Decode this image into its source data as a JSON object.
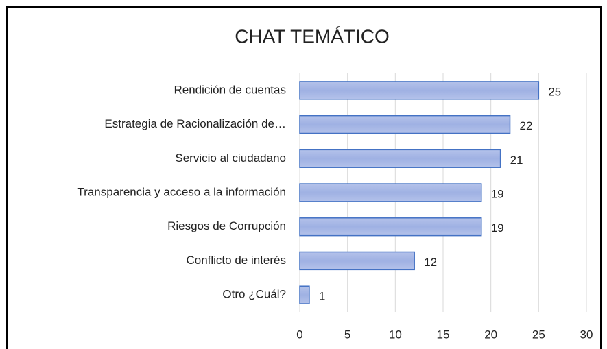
{
  "chart_data": {
    "type": "bar",
    "orientation": "horizontal",
    "title": "CHAT TEMÁTICO",
    "categories": [
      "Rendición de cuentas",
      "Estrategia de Racionalización de…",
      "Servicio al ciudadano",
      "Transparencia y acceso a la información",
      "Riesgos de Corrupción",
      "Conflicto de interés",
      "Otro ¿Cuál?"
    ],
    "values": [
      25,
      22,
      21,
      19,
      19,
      12,
      1
    ],
    "color": "#4472c4",
    "xlim": [
      0,
      30
    ],
    "xticks": [
      0,
      5,
      10,
      15,
      20,
      25,
      30
    ],
    "grid": true
  }
}
